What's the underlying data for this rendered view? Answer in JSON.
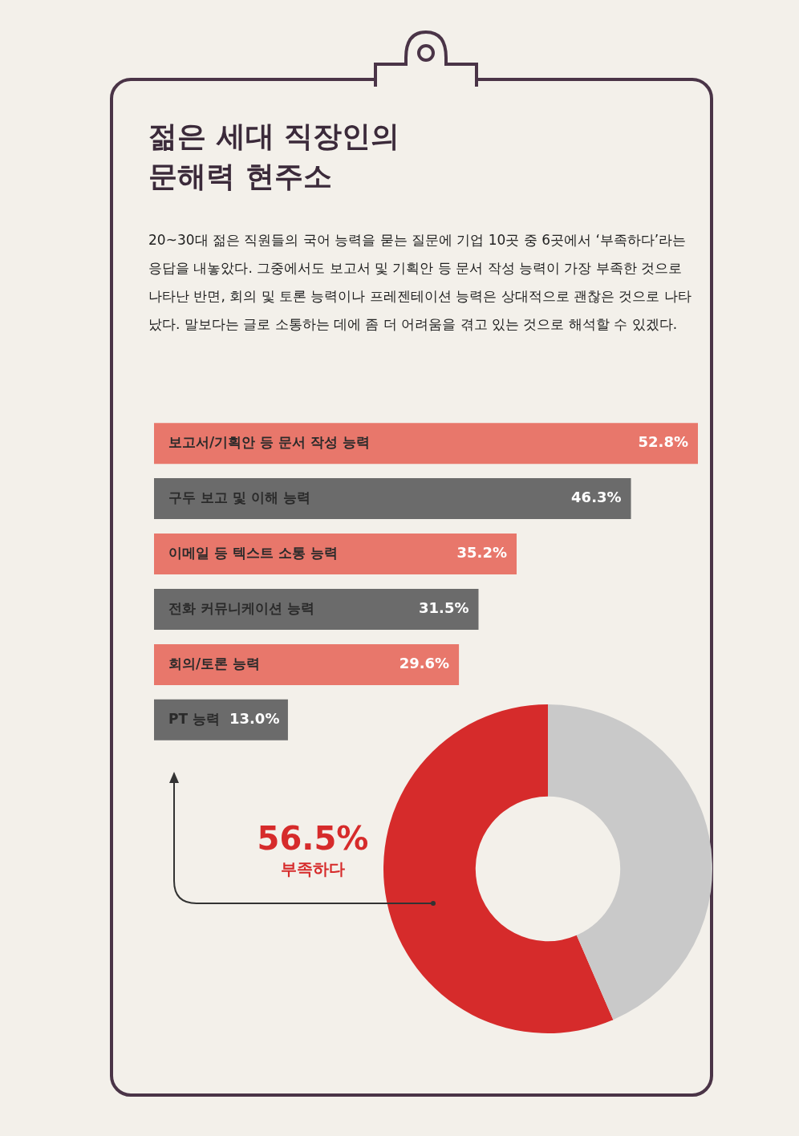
{
  "chart_data": [
    {
      "type": "bar",
      "orientation": "horizontal",
      "title": "젊은 세대 직장인의\n문해력 현주소",
      "subtitle": "20~30대 젊은 직원들의 국어 능력을 묻는 질문에 기업 10곳 중 6곳에서 ‘부족하다’라는 응답을 내놓았다. 그중에서도 보고서 및 기획안 등 문서 작성 능력이 가장 부족한 것으로 나타난 반면, 회의 및 토론 능력이나 프레젠테이션 능력은 상대적으로 괜찮은 것으로 나타났다. 말보다는 글로 소통하는 데에 좀 더 어려움을 겪고 있는 것으로 해석할 수 있겠다.",
      "categories": [
        "보고서/기획안 등 문서 작성 능력",
        "구두 보고 및 이해 능력",
        "이메일 등 텍스트 소통 능력",
        "전화 커뮤니케이션 능력",
        "회의/토론 능력",
        "PT 능력"
      ],
      "values": [
        52.8,
        46.3,
        35.2,
        31.5,
        29.6,
        13.0
      ],
      "value_labels": [
        "52.8%",
        "46.3%",
        "35.2%",
        "31.5%",
        "29.6%",
        "13.0%"
      ],
      "colors": [
        "#e8776b",
        "#6b6b6b",
        "#e8776b",
        "#6b6b6b",
        "#e8776b",
        "#6b6b6b"
      ]
    },
    {
      "type": "donut",
      "categories": [
        "부족하다",
        null
      ],
      "values": [
        56.5,
        43.5
      ],
      "value_labels": [
        "56.5%",
        null
      ],
      "colors": [
        "#d62b2b",
        "#c9c9c9"
      ]
    }
  ]
}
